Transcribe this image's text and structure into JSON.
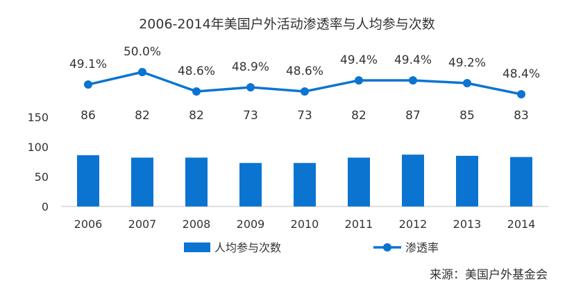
{
  "title": "2006-2014年美国户外活动渗透率与人均参与次数",
  "source": "来源：美国户外基金会",
  "colors": {
    "bar": "#0b74d1",
    "line": "#0b74d1",
    "axis": "#bfbfbf",
    "text": "#333333"
  },
  "chart_data": {
    "type": "bar",
    "categories": [
      "2006",
      "2007",
      "2008",
      "2009",
      "2010",
      "2011",
      "2012",
      "2013",
      "2014"
    ],
    "ylim": [
      0,
      150
    ],
    "yticks": [
      0,
      50,
      100,
      150
    ],
    "series": [
      {
        "name": "人均参与次数",
        "type": "bar",
        "values": [
          86,
          82,
          82,
          73,
          73,
          82,
          87,
          85,
          83
        ],
        "labels": [
          "86",
          "82",
          "82",
          "73",
          "73",
          "82",
          "87",
          "85",
          "83"
        ]
      },
      {
        "name": "渗透率",
        "type": "line",
        "axis": "secondary",
        "values": [
          49.1,
          50.0,
          48.6,
          48.9,
          48.6,
          49.4,
          49.4,
          49.2,
          48.4
        ],
        "labels": [
          "49.1%",
          "50.0%",
          "48.6%",
          "48.9%",
          "48.6%",
          "49.4%",
          "49.4%",
          "49.2%",
          "48.4%"
        ]
      }
    ],
    "legend": "bottom",
    "grid": false
  }
}
